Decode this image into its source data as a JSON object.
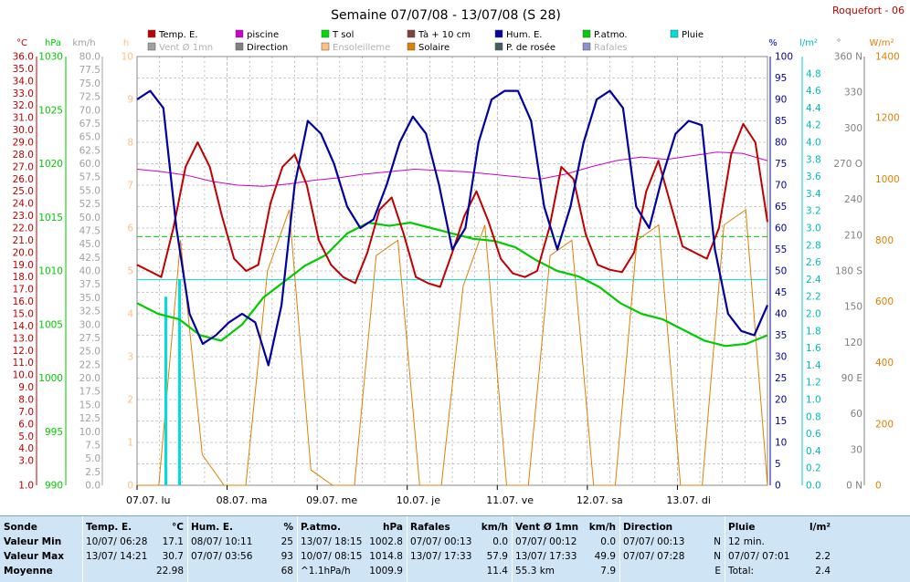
{
  "header": {
    "title": "Semaine 07/07/08 - 13/07/08 (S 28)",
    "station": "Roquefort - 06"
  },
  "colors": {
    "temp": "#c00000",
    "piscine": "#cc00cc",
    "tsol": "#00dd00",
    "ta10": "#804040",
    "hum": "#0000a0",
    "patm": "#00cc00",
    "pluie": "#00dddd",
    "vent": "#a0a0a0",
    "direction": "#808080",
    "ensoleillement": "#ffc080",
    "solaire": "#e08000",
    "rosee": "#406060",
    "rafales": "#9090d0"
  },
  "legend": [
    {
      "label": "Temp. E.",
      "color": "#c00000"
    },
    {
      "label": "piscine",
      "color": "#cc00cc"
    },
    {
      "label": "T sol",
      "color": "#00dd00"
    },
    {
      "label": "Tà + 10 cm",
      "color": "#804040"
    },
    {
      "label": "Hum. E.",
      "color": "#0000a0"
    },
    {
      "label": "P.atmo.",
      "color": "#00cc00"
    },
    {
      "label": "Pluie",
      "color": "#00dddd"
    },
    {
      "label": "Vent Ø 1mn",
      "color": "#a0a0a0"
    },
    {
      "label": "Direction",
      "color": "#808080"
    },
    {
      "label": "Ensoleilleme",
      "color": "#ffc080"
    },
    {
      "label": "Solaire",
      "color": "#e08000"
    },
    {
      "label": "P. de rosée",
      "color": "#406060"
    },
    {
      "label": "Rafales",
      "color": "#9090d0"
    }
  ],
  "units": {
    "temp": "°C",
    "hpa": "hPa",
    "kmh": "km/h",
    "h": "h",
    "pct": "%",
    "lm2": "l/m²",
    "deg": "°",
    "wm2": "W/m²"
  },
  "chart_data": {
    "type": "line",
    "x_labels": [
      "07.07. lu",
      "08.07. ma",
      "09.07. me",
      "10.07. je",
      "11.07. ve",
      "12.07. sa",
      "13.07. di"
    ],
    "axes": {
      "temp": {
        "min": 1,
        "max": 36,
        "ticks": [
          1.0,
          3.0,
          4.0,
          5.0,
          6.0,
          7.0,
          8.0,
          9.0,
          10.0,
          11.0,
          12.0,
          13.0,
          14.0,
          15.0,
          16.0,
          17.0,
          18.0,
          19.0,
          20.0,
          21.0,
          22.0,
          23.0,
          24.0,
          25.0,
          26.0,
          27.0,
          28.0,
          29.0,
          30.0,
          31.0,
          32.0,
          33.0,
          34.0,
          35.0,
          36.0
        ]
      },
      "hpa": {
        "min": 990,
        "max": 1030,
        "ticks": [
          990,
          995,
          1000,
          1005,
          1010,
          1015,
          1020,
          1025,
          1030
        ]
      },
      "kmh": {
        "min": 0,
        "max": 80
      },
      "h": {
        "min": 0,
        "max": 10
      },
      "pct": {
        "min": 0,
        "max": 100
      },
      "lm2": {
        "min": 0,
        "max": 5,
        "ticks": [
          0.0,
          0.2,
          0.4,
          0.6,
          0.8,
          1.0,
          1.2,
          1.4,
          1.6,
          1.8,
          2.0,
          2.2,
          2.4,
          2.6,
          2.8,
          3.0,
          3.2,
          3.4,
          3.6,
          3.8,
          4.0,
          4.2,
          4.4,
          4.6,
          4.8
        ]
      },
      "deg": {
        "min": 0,
        "max": 360,
        "ticks": [
          "0 N",
          "30",
          "60",
          "90 E",
          "120",
          "150",
          "180 S",
          "210",
          "240",
          "270 O",
          "300",
          "330",
          "360 N"
        ]
      },
      "wm2": {
        "min": 0,
        "max": 1400,
        "ticks": [
          0,
          200,
          400,
          600,
          800,
          1000,
          1200,
          1400
        ]
      }
    },
    "series": [
      {
        "key": "temp",
        "name": "Temp. E.",
        "axis": "temp",
        "values": [
          19.0,
          18.5,
          18.0,
          22.0,
          27.0,
          29.0,
          27.0,
          23.0,
          19.5,
          18.5,
          19.0,
          24.0,
          27.0,
          28.0,
          25.5,
          21.0,
          19.0,
          18.0,
          17.5,
          20.0,
          23.5,
          24.5,
          21.5,
          18.0,
          17.5,
          17.2,
          20.0,
          23.0,
          25.0,
          22.5,
          19.5,
          18.3,
          18.0,
          18.5,
          22.0,
          27.0,
          26.0,
          21.5,
          19.0,
          18.6,
          18.4,
          20.0,
          25.0,
          27.5,
          24.0,
          20.5,
          20.0,
          19.5,
          22.0,
          28.0,
          30.5,
          29.0,
          22.5
        ]
      },
      {
        "key": "hum",
        "name": "Hum. E.",
        "axis": "pct",
        "values": [
          90,
          92,
          88,
          60,
          40,
          33,
          35,
          38,
          40,
          38,
          28,
          42,
          70,
          85,
          82,
          75,
          65,
          60,
          62,
          70,
          80,
          86,
          82,
          70,
          55,
          60,
          80,
          90,
          92,
          92,
          85,
          65,
          55,
          65,
          80,
          90,
          92,
          88,
          65,
          60,
          72,
          82,
          85,
          84,
          55,
          40,
          36,
          35,
          42
        ]
      },
      {
        "key": "patm",
        "name": "P.atmo.",
        "axis": "hpa",
        "values": [
          1007.0,
          1006.0,
          1005.5,
          1004.0,
          1003.5,
          1005.0,
          1007.5,
          1009.0,
          1010.5,
          1011.5,
          1013.5,
          1014.5,
          1014.2,
          1014.5,
          1014.0,
          1013.5,
          1013.0,
          1012.8,
          1012.2,
          1011.0,
          1010.0,
          1009.5,
          1008.5,
          1007.0,
          1006.0,
          1005.5,
          1004.5,
          1003.5,
          1003.0,
          1003.2,
          1004.0
        ]
      },
      {
        "key": "piscine",
        "name": "piscine",
        "axis": "temp",
        "values": [
          26.8,
          26.6,
          26.3,
          25.8,
          25.5,
          25.4,
          25.6,
          25.9,
          26.1,
          26.4,
          26.6,
          26.8,
          26.7,
          26.6,
          26.4,
          26.2,
          26.0,
          26.4,
          27.0,
          27.5,
          27.8,
          27.6,
          27.9,
          28.2,
          28.1,
          27.5
        ]
      },
      {
        "key": "solaire",
        "name": "Solaire",
        "axis": "wm2",
        "values": [
          0,
          0,
          800,
          100,
          0,
          0,
          700,
          900,
          50,
          0,
          0,
          750,
          800,
          0,
          0,
          650,
          850,
          0,
          0,
          750,
          800,
          0,
          0,
          800,
          850,
          0,
          0,
          850,
          900,
          0
        ]
      },
      {
        "key": "pluie",
        "name": "Pluie",
        "axis": "lm2",
        "values": [
          2.2,
          2.4
        ]
      }
    ]
  },
  "stats": {
    "columns": [
      {
        "title": "Sonde",
        "unit": "",
        "rows": [
          "Valeur Min",
          "Valeur Max",
          "Moyenne"
        ]
      },
      {
        "title": "Temp. E.",
        "unit": "°C",
        "rows": [
          [
            "10/07/ 06:28",
            "17.1"
          ],
          [
            "13/07/ 14:21",
            "30.7"
          ],
          [
            "",
            "22.98"
          ]
        ]
      },
      {
        "title": "Hum. E.",
        "unit": "%",
        "rows": [
          [
            "08/07/ 10:11",
            "25"
          ],
          [
            "07/07/ 03:56",
            "93"
          ],
          [
            "",
            "68"
          ]
        ]
      },
      {
        "title": "P.atmo.",
        "unit": "hPa",
        "rows": [
          [
            "13/07/ 18:15",
            "1002.8"
          ],
          [
            "10/07/ 08:15",
            "1014.8"
          ],
          [
            "^1.1hPa/h",
            "1009.9"
          ]
        ]
      },
      {
        "title": "Rafales",
        "unit": "km/h",
        "rows": [
          [
            "07/07/ 00:13",
            "0.0"
          ],
          [
            "13/07/ 17:33",
            "57.9"
          ],
          [
            "",
            "11.4"
          ]
        ]
      },
      {
        "title": "Vent Ø 1mn",
        "unit": "km/h",
        "rows": [
          [
            "07/07/ 00:12",
            "0.0"
          ],
          [
            "13/07/ 17:33",
            "49.9"
          ],
          [
            "55.3 km",
            "7.9"
          ]
        ]
      },
      {
        "title": "Direction",
        "unit": "",
        "rows": [
          [
            "07/07/ 00:13",
            "N"
          ],
          [
            "07/07/ 07:28",
            "N"
          ],
          [
            "",
            "E"
          ]
        ]
      },
      {
        "title": "Pluie",
        "unit": "l/m²",
        "rows": [
          [
            "12 min.",
            ""
          ],
          [
            "07/07/ 07:01",
            "2.2"
          ],
          [
            "Total:",
            "2.4"
          ]
        ]
      }
    ]
  }
}
